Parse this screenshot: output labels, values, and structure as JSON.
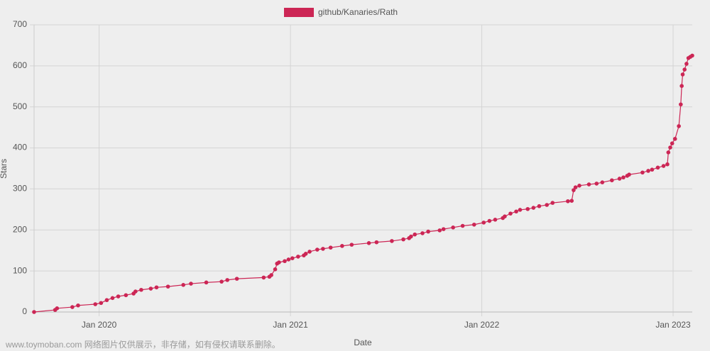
{
  "chart_data": {
    "type": "line",
    "x_label": "Date",
    "y_label": "Stars",
    "watermark": "www.toymoban.com 网络图片仅供展示，非存储，如有侵权请联系删除。",
    "xlim": [
      2019.66,
      2023.1
    ],
    "xticks": [
      {
        "value": 2020,
        "label": "Jan 2020"
      },
      {
        "value": 2021,
        "label": "Jan 2021"
      },
      {
        "value": 2022,
        "label": "Jan 2022"
      },
      {
        "value": 2023,
        "label": "Jan 2023"
      }
    ],
    "ylim": [
      0,
      700
    ],
    "yticks": [
      0,
      100,
      200,
      300,
      400,
      500,
      600,
      700
    ],
    "grid": true,
    "legend": "top",
    "series": [
      {
        "name": "github/Kanaries/Rath",
        "color": "#cc2655",
        "x": [
          2019.66,
          2019.77,
          2019.78,
          2019.86,
          2019.89,
          2019.98,
          2020.01,
          2020.04,
          2020.07,
          2020.1,
          2020.14,
          2020.18,
          2020.19,
          2020.22,
          2020.27,
          2020.3,
          2020.36,
          2020.44,
          2020.48,
          2020.56,
          2020.64,
          2020.67,
          2020.72,
          2020.86,
          2020.89,
          2020.9,
          2020.92,
          2020.93,
          2020.94,
          2020.97,
          2020.99,
          2021.01,
          2021.04,
          2021.07,
          2021.08,
          2021.1,
          2021.14,
          2021.17,
          2021.21,
          2021.27,
          2021.32,
          2021.41,
          2021.45,
          2021.53,
          2021.59,
          2021.62,
          2021.63,
          2021.65,
          2021.69,
          2021.72,
          2021.78,
          2021.8,
          2021.85,
          2021.9,
          2021.96,
          2022.01,
          2022.04,
          2022.07,
          2022.11,
          2022.12,
          2022.15,
          2022.18,
          2022.2,
          2022.24,
          2022.27,
          2022.3,
          2022.34,
          2022.37,
          2022.45,
          2022.47,
          2022.48,
          2022.49,
          2022.51,
          2022.56,
          2022.6,
          2022.63,
          2022.68,
          2022.72,
          2022.74,
          2022.76,
          2022.77,
          2022.84,
          2022.87,
          2022.89,
          2022.92,
          2022.95,
          2022.97,
          2022.975,
          2022.985,
          2022.995,
          2023.01,
          2023.03,
          2023.04,
          2023.045,
          2023.05,
          2023.06,
          2023.07,
          2023.08,
          2023.09,
          2023.1
        ],
        "values": [
          0,
          5,
          9,
          12,
          16,
          19,
          22,
          29,
          34,
          38,
          41,
          45,
          50,
          54,
          57,
          60,
          62,
          66,
          69,
          72,
          74,
          78,
          81,
          84,
          86,
          90,
          104,
          118,
          121,
          124,
          128,
          131,
          135,
          138,
          142,
          147,
          152,
          154,
          157,
          161,
          164,
          168,
          170,
          173,
          177,
          180,
          184,
          189,
          192,
          196,
          199,
          202,
          206,
          210,
          213,
          218,
          222,
          225,
          229,
          233,
          240,
          245,
          249,
          251,
          254,
          258,
          261,
          266,
          270,
          271,
          297,
          304,
          308,
          311,
          313,
          316,
          321,
          325,
          328,
          332,
          335,
          340,
          344,
          347,
          352,
          356,
          360,
          389,
          401,
          411,
          422,
          453,
          506,
          551,
          579,
          591,
          605,
          619,
          622,
          625
        ]
      }
    ]
  }
}
